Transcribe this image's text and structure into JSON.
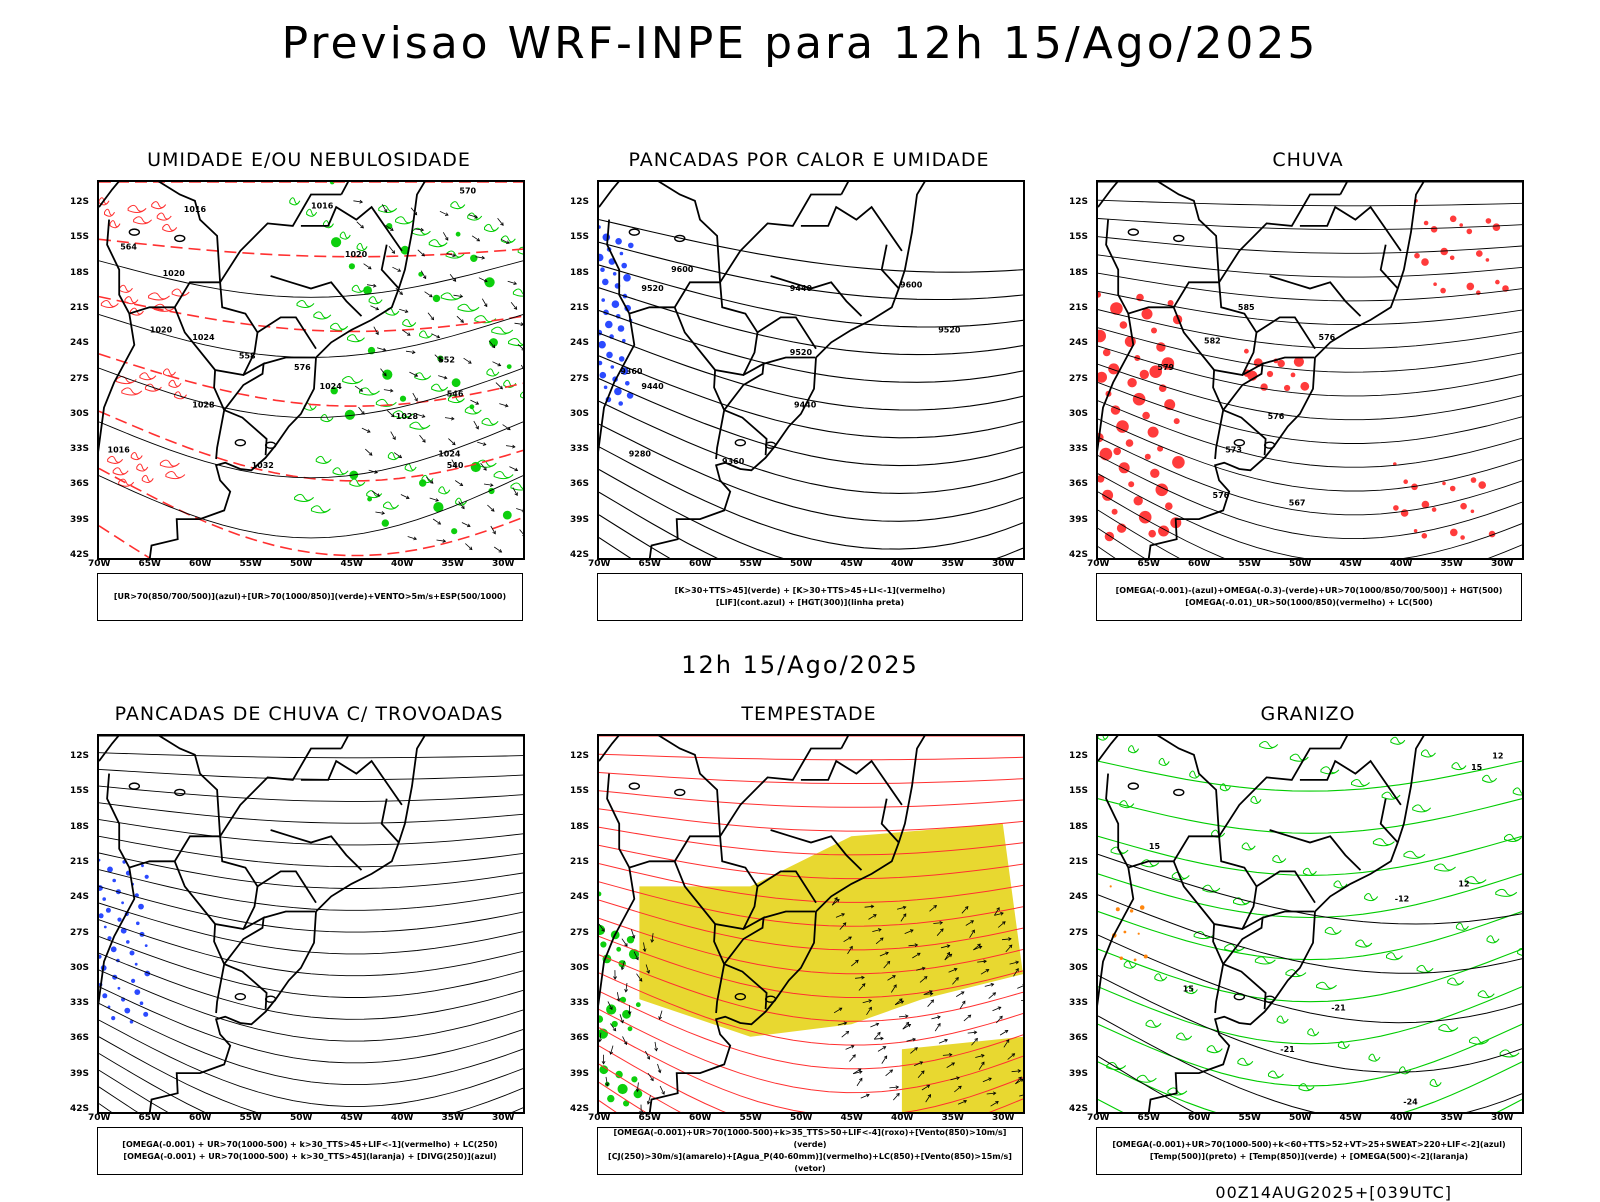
{
  "title": "Previsao WRF-INPE  para 12h 15/Ago/2025",
  "mid_title": "12h 15/Ago/2025",
  "footer": "00Z14AUG2025+[039UTC]",
  "lat_labels": [
    "12S",
    "15S",
    "18S",
    "21S",
    "24S",
    "27S",
    "30S",
    "33S",
    "36S",
    "39S",
    "42S"
  ],
  "lon_labels": [
    "70W",
    "65W",
    "60W",
    "55W",
    "50W",
    "45W",
    "40W",
    "35W",
    "30W"
  ],
  "panels": [
    {
      "title": "UMIDADE E/OU NEBULOSIDADE",
      "legend": [
        "[UR>70(850/700/500)](azul)+[UR>70(1000/850)](verde)+VENTO>5m/s+ESP(500/1000)"
      ]
    },
    {
      "title": "PANCADAS POR CALOR E UMIDADE",
      "legend": [
        "[K>30+TTS>45](verde) + [K>30+TTS>45+LI<-1](vermelho)",
        "[LIF](cont.azul) + [HGT(300)](linha preta)"
      ]
    },
    {
      "title": "CHUVA",
      "legend": [
        "[OMEGA(-0.001)-(azul)+OMEGA(-0.3)-(verde)+UR>70(1000/850/700/500)] + HGT(500)",
        "[OMEGA(-0.01)_UR>50(1000/850)(vermelho) + LC(500)"
      ]
    },
    {
      "title": "PANCADAS DE CHUVA C/ TROVOADAS",
      "legend": [
        "[OMEGA(-0.001) + UR>70(1000-500) + k>30_TTS>45+LIF<-1](vermelho) + LC(250)",
        "[OMEGA(-0.001) + UR>70(1000-500) + k>30_TTS>45](laranja) + [DIVG(250)](azul)"
      ]
    },
    {
      "title": "TEMPESTADE",
      "legend": [
        "[OMEGA(-0.001)+UR>70(1000-500)+k>35_TTS>50+LIF<-4](roxo)+[Vento(850)>10m/s](verde)",
        "[CJ(250)>30m/s](amarelo)+[Agua_P(40-60mm)](vermelho)+LC(850)+[Vento(850)>15m/s](vetor)"
      ]
    },
    {
      "title": "GRANIZO",
      "legend": [
        "[OMEGA(-0.001)+UR>70(1000-500)+k<60+TTS>52+VT>25+SWEAT>220+LIF<-2](azul)",
        "[Temp(500)](preto) + [Temp(850)](verde) + [OMEGA(500)<-2](laranja)"
      ]
    }
  ],
  "contour_labels": {
    "p1": [
      "1016",
      "1016",
      "1020",
      "1024",
      "1028",
      "1032",
      "1020",
      "1024",
      "1028",
      "1024",
      "1020",
      "1016",
      "570",
      "564",
      "558",
      "552",
      "546",
      "540",
      "576"
    ],
    "p2": [
      "9600",
      "9520",
      "9440",
      "9360",
      "9280",
      "9600",
      "9520",
      "9520",
      "9440",
      "9440",
      "9360"
    ],
    "p3": [
      "585",
      "582",
      "579",
      "576",
      "573",
      "576",
      "567",
      "576"
    ],
    "p6": [
      "15",
      "12",
      "-12",
      "-21",
      "-21",
      "-24",
      "15",
      "12",
      "15"
    ]
  },
  "colors": {
    "contour": "#000000",
    "green": "#00cc00",
    "red": "#ff3030",
    "blue": "#2040ff",
    "yellow": "#e8d830",
    "orange": "#ff8000"
  }
}
